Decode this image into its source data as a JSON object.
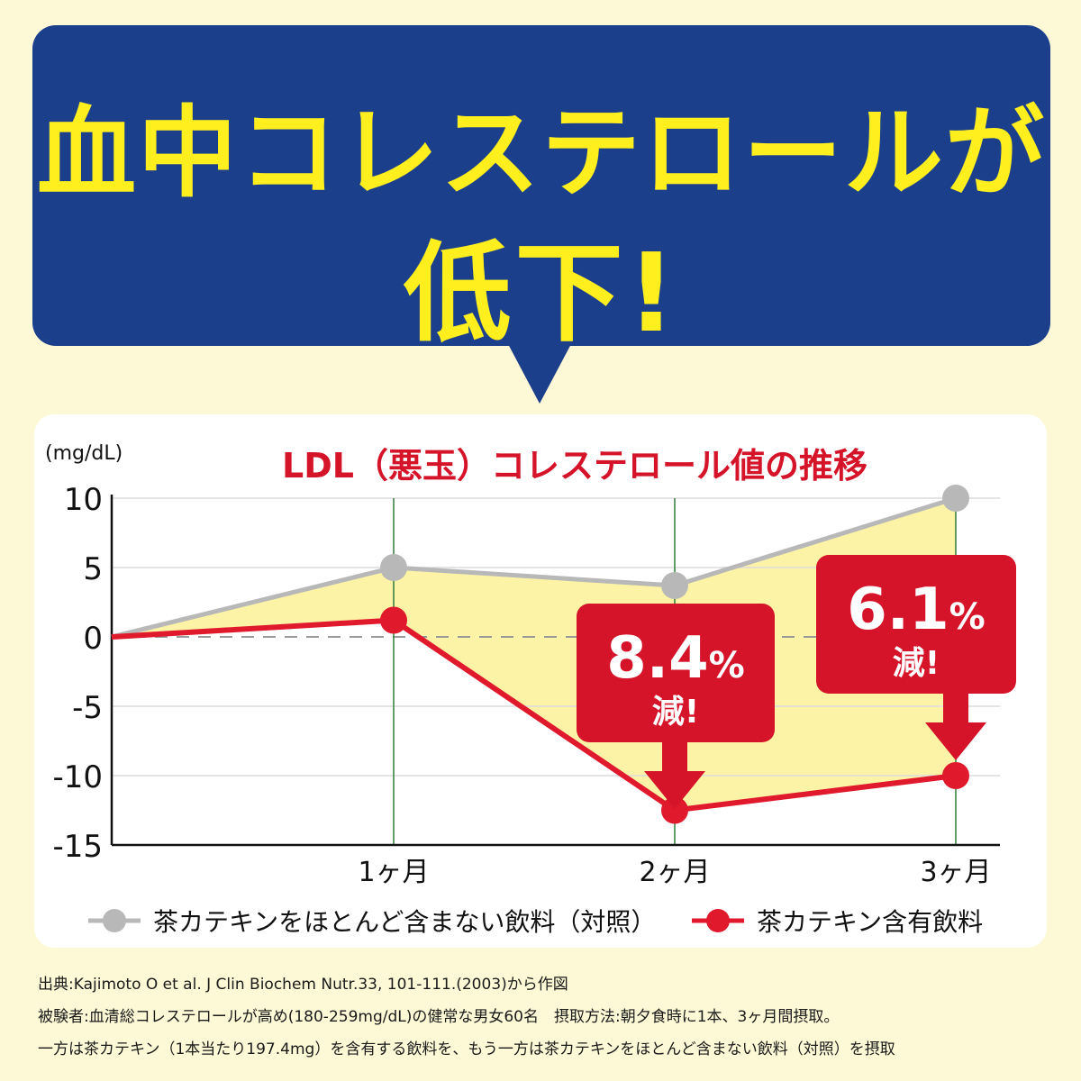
{
  "headline": {
    "line1": "血中コレステロールが",
    "line2": "低下!"
  },
  "chart_data": {
    "type": "line",
    "title": "LDL（悪玉）コレステロール値の推移",
    "ylabel": "(mg/dL)",
    "xlabel": "",
    "ylim": [
      -15,
      10
    ],
    "yticks": [
      10,
      5,
      0,
      -5,
      -10,
      -15
    ],
    "categories": [
      "",
      "1ヶ月",
      "2ヶ月",
      "3ヶ月"
    ],
    "grid": true,
    "legend": "bottom",
    "series": [
      {
        "name": "茶カテキンをほとんど含まない飲料（対照）",
        "values": [
          0,
          5,
          3.7,
          10
        ],
        "color": "#b8b8b8"
      },
      {
        "name": "茶カテキン含有飲料",
        "values": [
          0,
          1.2,
          -12.5,
          -10
        ],
        "color": "#e0192c"
      }
    ],
    "annotations": [
      {
        "at": "2ヶ月",
        "value": "8.4",
        "unit": "%",
        "text": "減!"
      },
      {
        "at": "3ヶ月",
        "value": "6.1",
        "unit": "%",
        "text": "減!"
      }
    ],
    "colors": {
      "fill": "#fcf3a6",
      "callout": "#d5142a",
      "vline": "#2e7d3a",
      "axis": "#111111"
    }
  },
  "footnotes": [
    "出典:Kajimoto O et al. J Clin Biochem Nutr.33, 101-111.(2003)から作図",
    "被験者:血清総コレステロールが高め(180-259mg/dL)の健常な男女60名　摂取方法:朝夕食時に1本、3ヶ月間摂取。",
    "一方は茶カテキン（1本当たり197.4mg）を含有する飲料を、もう一方は茶カテキンをほとんど含まない飲料（対照）を摂取"
  ]
}
